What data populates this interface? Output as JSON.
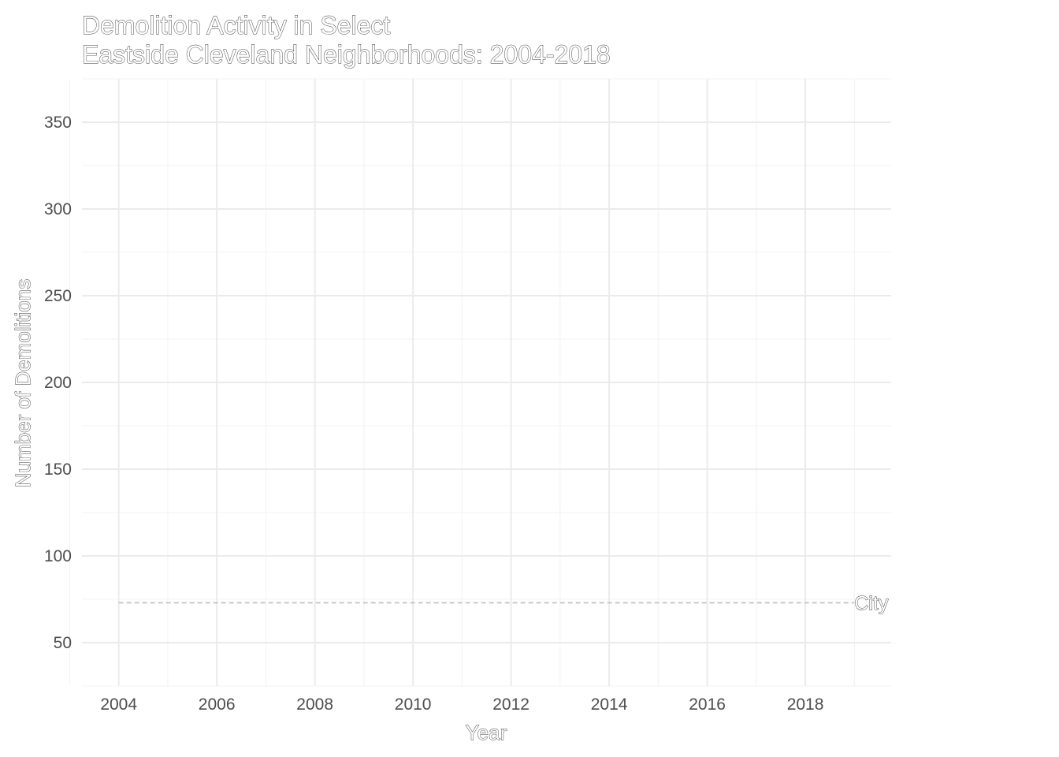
{
  "chart_data": {
    "type": "line",
    "title": "Demolition Activity in Select\nEastside Cleveland Neighborhoods: 2004-2018",
    "title_lines": [
      "Demolition Activity in Select",
      "Eastside Cleveland Neighborhoods: 2004-2018"
    ],
    "xlabel": "Year",
    "ylabel": "Number of Demolitions",
    "xlim": [
      2003.25,
      2019.75
    ],
    "ylim": [
      25,
      375
    ],
    "x_ticks": [
      2004,
      2006,
      2008,
      2010,
      2012,
      2014,
      2016,
      2018
    ],
    "x_tick_labels": [
      "2004",
      "2006",
      "2008",
      "2010",
      "2012",
      "2014",
      "2016",
      "2018"
    ],
    "y_ticks": [
      50,
      100,
      150,
      200,
      250,
      300,
      350
    ],
    "y_tick_labels": [
      "50",
      "100",
      "150",
      "200",
      "250",
      "300",
      "350"
    ],
    "grid": true,
    "series": [
      {
        "name": "City",
        "line_style": "dashed",
        "color": "#bdbdbd",
        "x": [
          2004,
          2019
        ],
        "y": [
          73,
          73
        ]
      }
    ],
    "annotations": [
      {
        "text": "City",
        "x": 2019,
        "y": 73
      }
    ]
  }
}
